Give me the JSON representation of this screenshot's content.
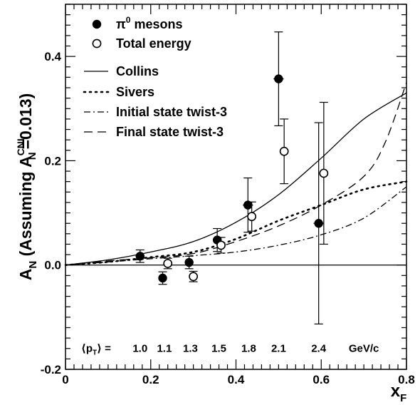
{
  "chart_data": {
    "type": "scatter",
    "title": "",
    "xlabel": "x",
    "xlabel_sub": "F",
    "ylabel_prefix": "A",
    "ylabel_prefix_sub": "N",
    "ylabel_text": " (Assuming A",
    "ylabel_sub": "N",
    "ylabel_sup": "CNI",
    "ylabel_suffix": "=0.013)",
    "xlim": [
      0,
      0.8
    ],
    "ylim": [
      -0.2,
      0.5
    ],
    "x_ticks": [
      {
        "value": 0,
        "label": "0"
      },
      {
        "value": 0.2,
        "label": "0.2"
      },
      {
        "value": 0.4,
        "label": "0.4"
      },
      {
        "value": 0.6,
        "label": "0.6"
      },
      {
        "value": 0.8,
        "label": "0.8"
      }
    ],
    "y_ticks": [
      {
        "value": -0.2,
        "label": "-0.2"
      },
      {
        "value": 0.0,
        "label": "0.0"
      },
      {
        "value": 0.2,
        "label": "0.2"
      },
      {
        "value": 0.4,
        "label": "0.4"
      }
    ],
    "zero_line": true,
    "legend_position": "top-left",
    "series": [
      {
        "name": "mesons",
        "name_symbol": "π",
        "name_sup": "0",
        "marker": "filled-circle",
        "color": "#000000",
        "points": [
          {
            "x": 0.175,
            "y": 0.017,
            "xerr": 0.01,
            "yerr": 0.012
          },
          {
            "x": 0.228,
            "y": -0.025,
            "xerr": 0.01,
            "yerr": 0.012
          },
          {
            "x": 0.29,
            "y": 0.005,
            "xerr": 0.01,
            "yerr": 0.012
          },
          {
            "x": 0.356,
            "y": 0.048,
            "xerr": 0.01,
            "yerr": 0.022
          },
          {
            "x": 0.428,
            "y": 0.115,
            "xerr": 0.012,
            "yerr": 0.052
          },
          {
            "x": 0.5,
            "y": 0.357,
            "xerr": 0.012,
            "yerr": 0.09
          },
          {
            "x": 0.594,
            "y": 0.08,
            "xerr": 0.012,
            "yerr": 0.193
          }
        ]
      },
      {
        "name": "Total energy",
        "marker": "open-circle",
        "color": "#000000",
        "points": [
          {
            "x": 0.24,
            "y": 0.003,
            "xerr": 0.008,
            "yerr": 0.01
          },
          {
            "x": 0.3,
            "y": -0.022,
            "xerr": 0.008,
            "yerr": 0.01
          },
          {
            "x": 0.365,
            "y": 0.038,
            "xerr": 0.008,
            "yerr": 0.015
          },
          {
            "x": 0.437,
            "y": 0.093,
            "xerr": 0.01,
            "yerr": 0.028
          },
          {
            "x": 0.513,
            "y": 0.218,
            "xerr": 0.01,
            "yerr": 0.062
          },
          {
            "x": 0.606,
            "y": 0.176,
            "xerr": 0.01,
            "yerr": 0.136
          }
        ]
      }
    ],
    "curves": [
      {
        "name": "Collins",
        "style": "solid",
        "x": [
          0,
          0.1,
          0.2,
          0.3,
          0.4,
          0.5,
          0.6,
          0.7,
          0.8
        ],
        "y": [
          0,
          0.01,
          0.025,
          0.045,
          0.082,
          0.135,
          0.205,
          0.28,
          0.33
        ]
      },
      {
        "name": "Sivers",
        "style": "dotted",
        "x": [
          0,
          0.1,
          0.2,
          0.3,
          0.4,
          0.5,
          0.6,
          0.7,
          0.8
        ],
        "y": [
          0,
          0.006,
          0.015,
          0.025,
          0.05,
          0.085,
          0.115,
          0.145,
          0.16
        ]
      },
      {
        "name": "Initial state twist-3",
        "style": "dash-dot",
        "x": [
          0,
          0.1,
          0.2,
          0.3,
          0.4,
          0.5,
          0.6,
          0.7,
          0.8
        ],
        "y": [
          0,
          0.006,
          0.012,
          0.018,
          0.025,
          0.038,
          0.058,
          0.09,
          0.15
        ]
      },
      {
        "name": "Final state twist-3",
        "style": "dashed",
        "x": [
          0,
          0.1,
          0.2,
          0.3,
          0.4,
          0.5,
          0.6,
          0.7,
          0.75,
          0.8
        ],
        "y": [
          0,
          0.008,
          0.014,
          0.022,
          0.045,
          0.075,
          0.115,
          0.17,
          0.235,
          0.35
        ]
      }
    ],
    "pt_annotation": {
      "label": "⟨p",
      "label_sub": "T",
      "label_suffix": "⟩ =",
      "values": [
        {
          "x": 0.175,
          "text": "1.0"
        },
        {
          "x": 0.232,
          "text": "1.1"
        },
        {
          "x": 0.293,
          "text": "1.3"
        },
        {
          "x": 0.36,
          "text": "1.5"
        },
        {
          "x": 0.43,
          "text": "1.8"
        },
        {
          "x": 0.5,
          "text": "2.1"
        },
        {
          "x": 0.594,
          "text": "2.4"
        }
      ],
      "unit": "GeV/c",
      "unit_x": 0.7,
      "y": -0.16
    }
  }
}
